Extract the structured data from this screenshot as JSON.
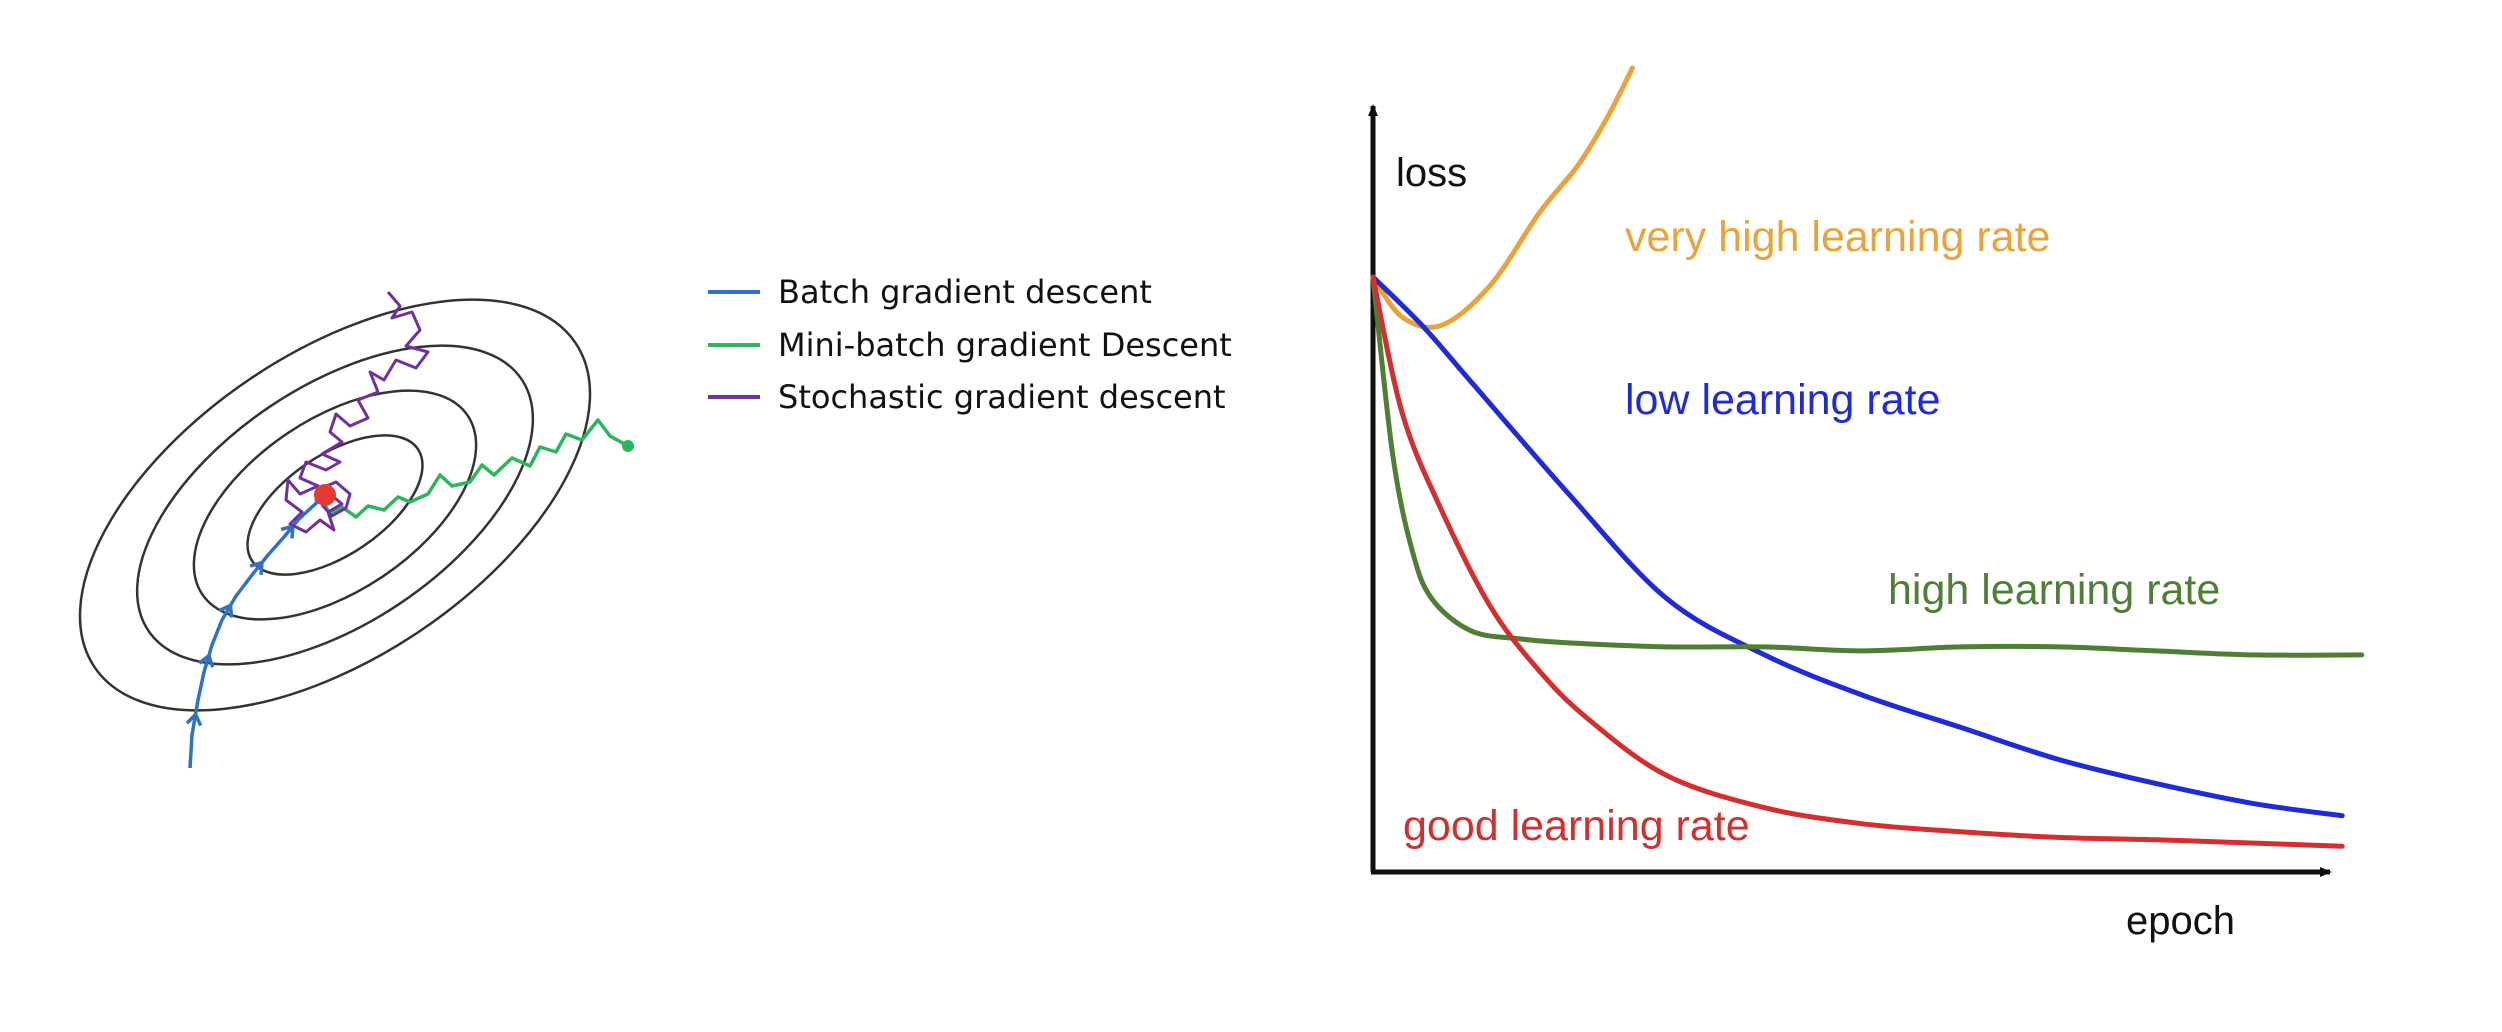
{
  "legend": {
    "items": [
      {
        "label": "Batch gradient descent",
        "color": "#2f72c4"
      },
      {
        "label": "Mini-batch gradient Descent",
        "color": "#2cb55a"
      },
      {
        "label": "Stochastic gradient descent",
        "color": "#7030a0"
      }
    ]
  },
  "contour_plot": {
    "minimum_marker_color": "#e53935",
    "contour_color": "#333333"
  },
  "chart_data": {
    "type": "line",
    "xlabel": "epoch",
    "ylabel": "loss",
    "xlim": [
      0,
      100
    ],
    "ylim": [
      0,
      100
    ],
    "grid": false,
    "series": [
      {
        "name": "very high learning rate",
        "color": "#e8a33a",
        "x": [
          0,
          3,
          7,
          12,
          17,
          21,
          24,
          26.5
        ],
        "y": [
          74,
          69,
          68,
          73,
          82,
          88,
          94,
          100
        ]
      },
      {
        "name": "low learning rate",
        "color": "#1f2bd6",
        "x": [
          0,
          5,
          10,
          20,
          30,
          40,
          50,
          60,
          70,
          80,
          90,
          99
        ],
        "y": [
          74,
          68,
          61,
          47,
          34,
          27,
          22,
          18,
          14,
          11,
          8.5,
          7
        ]
      },
      {
        "name": "high learning rate",
        "color": "#4f7f34",
        "x": [
          0,
          2,
          4,
          6,
          10,
          15,
          20,
          30,
          40,
          50,
          60,
          70,
          80,
          90,
          101
        ],
        "y": [
          74,
          52,
          40,
          34,
          30,
          29,
          28.5,
          28,
          28,
          27.5,
          28,
          28,
          27.5,
          27,
          27
        ]
      },
      {
        "name": "good learning rate",
        "color": "#d32f2f",
        "x": [
          0,
          3,
          7,
          12,
          17,
          22,
          30,
          40,
          50,
          60,
          70,
          80,
          90,
          99
        ],
        "y": [
          74,
          57,
          45,
          33,
          25,
          19,
          12,
          8,
          6,
          5,
          4.3,
          4,
          3.6,
          3.2
        ]
      }
    ]
  }
}
